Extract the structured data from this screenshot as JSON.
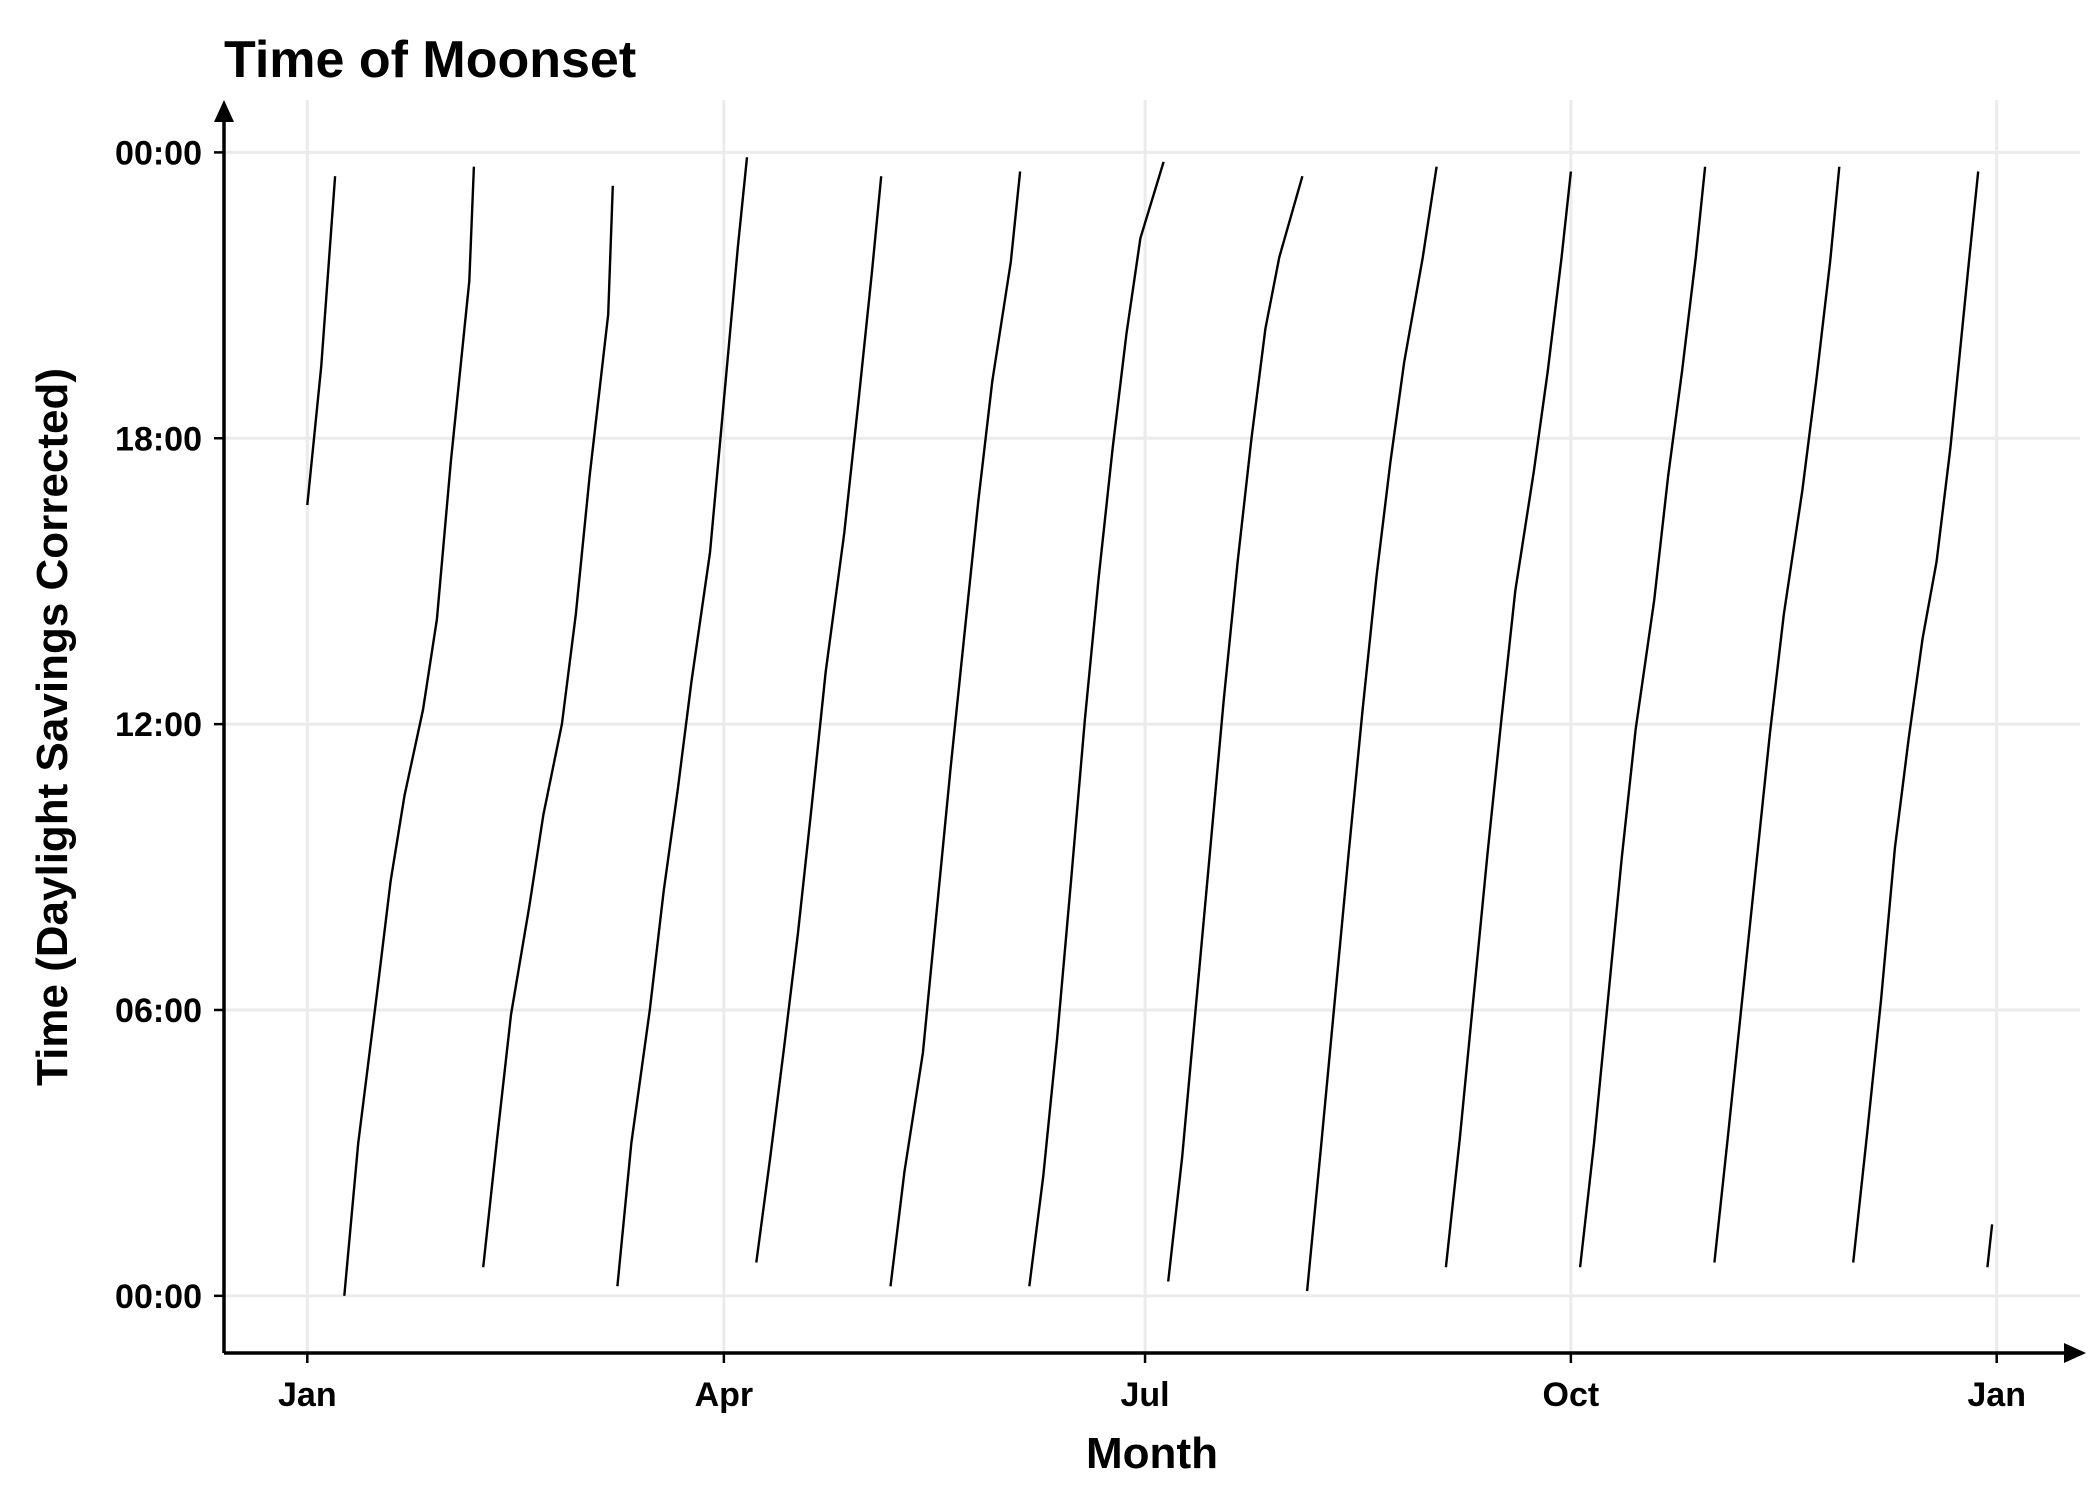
{
  "chart_data": {
    "type": "line",
    "title": "Time of Moonset",
    "xlabel": "Month",
    "ylabel": "Time (Daylight Savings Corrected)",
    "x_ticks": [
      {
        "label": "Jan",
        "day": 0
      },
      {
        "label": "Apr",
        "day": 90
      },
      {
        "label": "Jul",
        "day": 181
      },
      {
        "label": "Oct",
        "day": 273
      },
      {
        "label": "Jan",
        "day": 365
      }
    ],
    "y_ticks": [
      {
        "label": "00:00",
        "hours": 0
      },
      {
        "label": "06:00",
        "hours": 6
      },
      {
        "label": "12:00",
        "hours": 12
      },
      {
        "label": "18:00",
        "hours": 18
      },
      {
        "label": "00:00",
        "hours": 24
      }
    ],
    "xlim": [
      -18,
      383
    ],
    "ylim": [
      -1.2,
      25.1
    ],
    "grid": true,
    "legend": "none",
    "segments": [
      {
        "x": [
          0,
          3,
          6
        ],
        "y": [
          16.6,
          19.5,
          23.5
        ]
      },
      {
        "x": [
          8,
          11,
          15,
          18,
          21,
          25,
          28,
          31,
          35,
          36
        ],
        "y": [
          0.0,
          3.2,
          6.3,
          8.7,
          10.5,
          12.3,
          14.2,
          17.5,
          21.3,
          23.7
        ]
      },
      {
        "x": [
          38,
          41,
          44,
          48,
          51,
          55,
          58,
          61,
          65,
          66
        ],
        "y": [
          0.6,
          3.3,
          5.9,
          8.2,
          10.1,
          12.0,
          14.3,
          17.2,
          20.6,
          23.3
        ]
      },
      {
        "x": [
          67,
          70,
          74,
          77,
          80,
          83,
          87,
          90,
          93,
          95
        ],
        "y": [
          0.2,
          3.2,
          6.0,
          8.5,
          10.6,
          12.9,
          15.6,
          18.8,
          22.0,
          23.9
        ]
      },
      {
        "x": [
          97,
          100,
          103,
          106,
          109,
          112,
          116,
          119,
          122,
          124
        ],
        "y": [
          0.7,
          2.9,
          5.2,
          7.6,
          10.3,
          13.1,
          16.0,
          18.7,
          21.5,
          23.5
        ]
      },
      {
        "x": [
          126,
          129,
          133,
          136,
          139,
          142,
          145,
          148,
          152,
          154
        ],
        "y": [
          0.2,
          2.6,
          5.1,
          8.1,
          11.1,
          13.9,
          16.7,
          19.2,
          21.7,
          23.6
        ]
      },
      {
        "x": [
          156,
          159,
          162,
          165,
          168,
          171,
          174,
          177,
          180,
          185
        ],
        "y": [
          0.2,
          2.5,
          5.4,
          8.7,
          12.1,
          15.1,
          17.8,
          20.2,
          22.2,
          23.8
        ]
      },
      {
        "x": [
          186,
          189,
          192,
          195,
          198,
          201,
          204,
          207,
          210,
          215
        ],
        "y": [
          0.3,
          2.9,
          6.1,
          9.3,
          12.5,
          15.4,
          18.0,
          20.3,
          21.8,
          23.5
        ]
      },
      {
        "x": [
          216,
          219,
          222,
          225,
          228,
          231,
          234,
          237,
          241,
          244
        ],
        "y": [
          0.1,
          3.1,
          6.2,
          9.3,
          12.3,
          15.1,
          17.5,
          19.6,
          21.8,
          23.7
        ]
      },
      {
        "x": [
          246,
          249,
          252,
          255,
          258,
          261,
          265,
          268,
          271,
          273
        ],
        "y": [
          0.6,
          3.3,
          6.3,
          9.3,
          12.1,
          14.8,
          17.3,
          19.4,
          21.8,
          23.6
        ]
      },
      {
        "x": [
          275,
          278,
          281,
          284,
          287,
          291,
          294,
          297,
          300,
          302
        ],
        "y": [
          0.6,
          3.2,
          6.2,
          9.2,
          11.9,
          14.6,
          17.2,
          19.4,
          21.8,
          23.7
        ]
      },
      {
        "x": [
          304,
          307,
          310,
          313,
          316,
          319,
          323,
          326,
          329,
          331
        ],
        "y": [
          0.7,
          3.4,
          6.2,
          9.0,
          11.8,
          14.3,
          16.9,
          19.2,
          21.7,
          23.7
        ]
      },
      {
        "x": [
          334,
          337,
          340,
          343,
          346,
          349,
          352,
          355,
          359,
          361
        ],
        "y": [
          0.7,
          3.4,
          6.2,
          9.4,
          11.7,
          13.8,
          15.4,
          17.8,
          21.7,
          23.6
        ]
      },
      {
        "x": [
          363,
          364
        ],
        "y": [
          0.6,
          1.5
        ]
      }
    ]
  }
}
